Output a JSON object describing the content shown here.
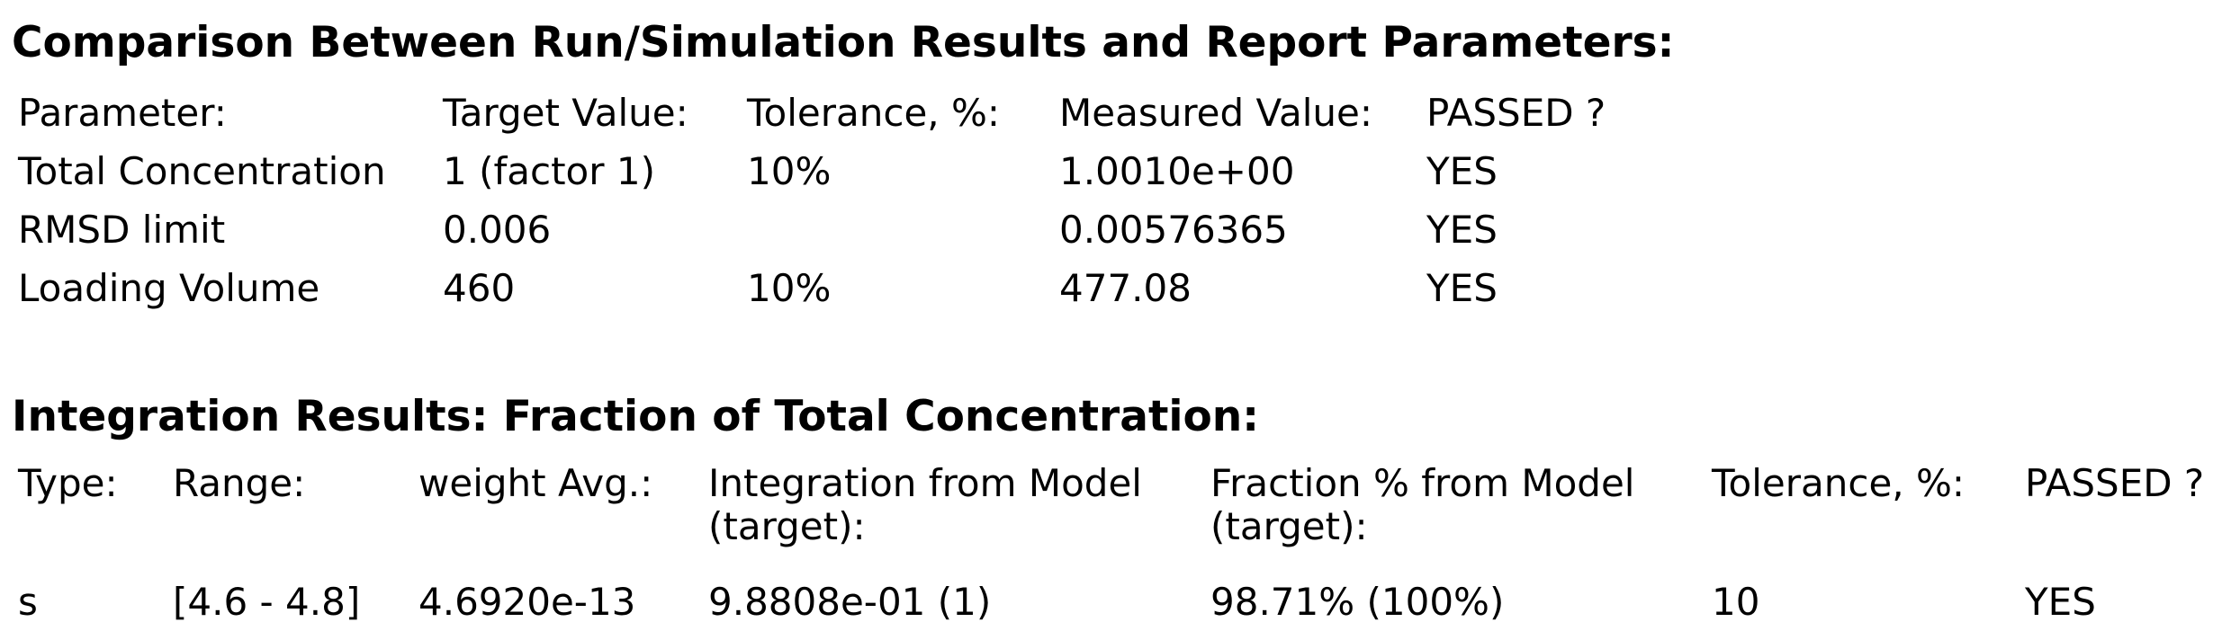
{
  "page": {
    "background_color": "#ffffff",
    "text_color": "#000000"
  },
  "comparison_section": {
    "title": "Comparison Between Run/Simulation Results and Report Parameters:",
    "columns": {
      "parameter": "Parameter:",
      "target": "Target Value:",
      "tolerance": "Tolerance, %:",
      "measured": "Measured Value:",
      "passed": "PASSED ?"
    },
    "rows": [
      {
        "parameter": "Total Concentration",
        "target": "1 (factor 1)",
        "tolerance": "10%",
        "measured": "1.0010e+00",
        "passed": "YES"
      },
      {
        "parameter": "RMSD limit",
        "target": "0.006",
        "tolerance": "",
        "measured": "0.00576365",
        "passed": "YES"
      },
      {
        "parameter": "Loading Volume",
        "target": "460",
        "tolerance": "10%",
        "measured": "477.08",
        "passed": "YES"
      }
    ]
  },
  "integration_section": {
    "title": "Integration Results: Fraction of Total Concentration:",
    "columns": {
      "type": "Type:",
      "range": "Range:",
      "weight_avg": "weight Avg.:",
      "integration": "Integration from Model (target):",
      "fraction": "Fraction % from Model (target):",
      "tolerance": "Tolerance, %:",
      "passed": "PASSED ?"
    },
    "rows": [
      {
        "type": "s",
        "range": "[4.6 - 4.8]",
        "weight_avg": "4.6920e-13",
        "integration": "9.8808e-01 (1)",
        "fraction": "98.71% (100%)",
        "tolerance": "10",
        "passed": "YES"
      }
    ]
  }
}
